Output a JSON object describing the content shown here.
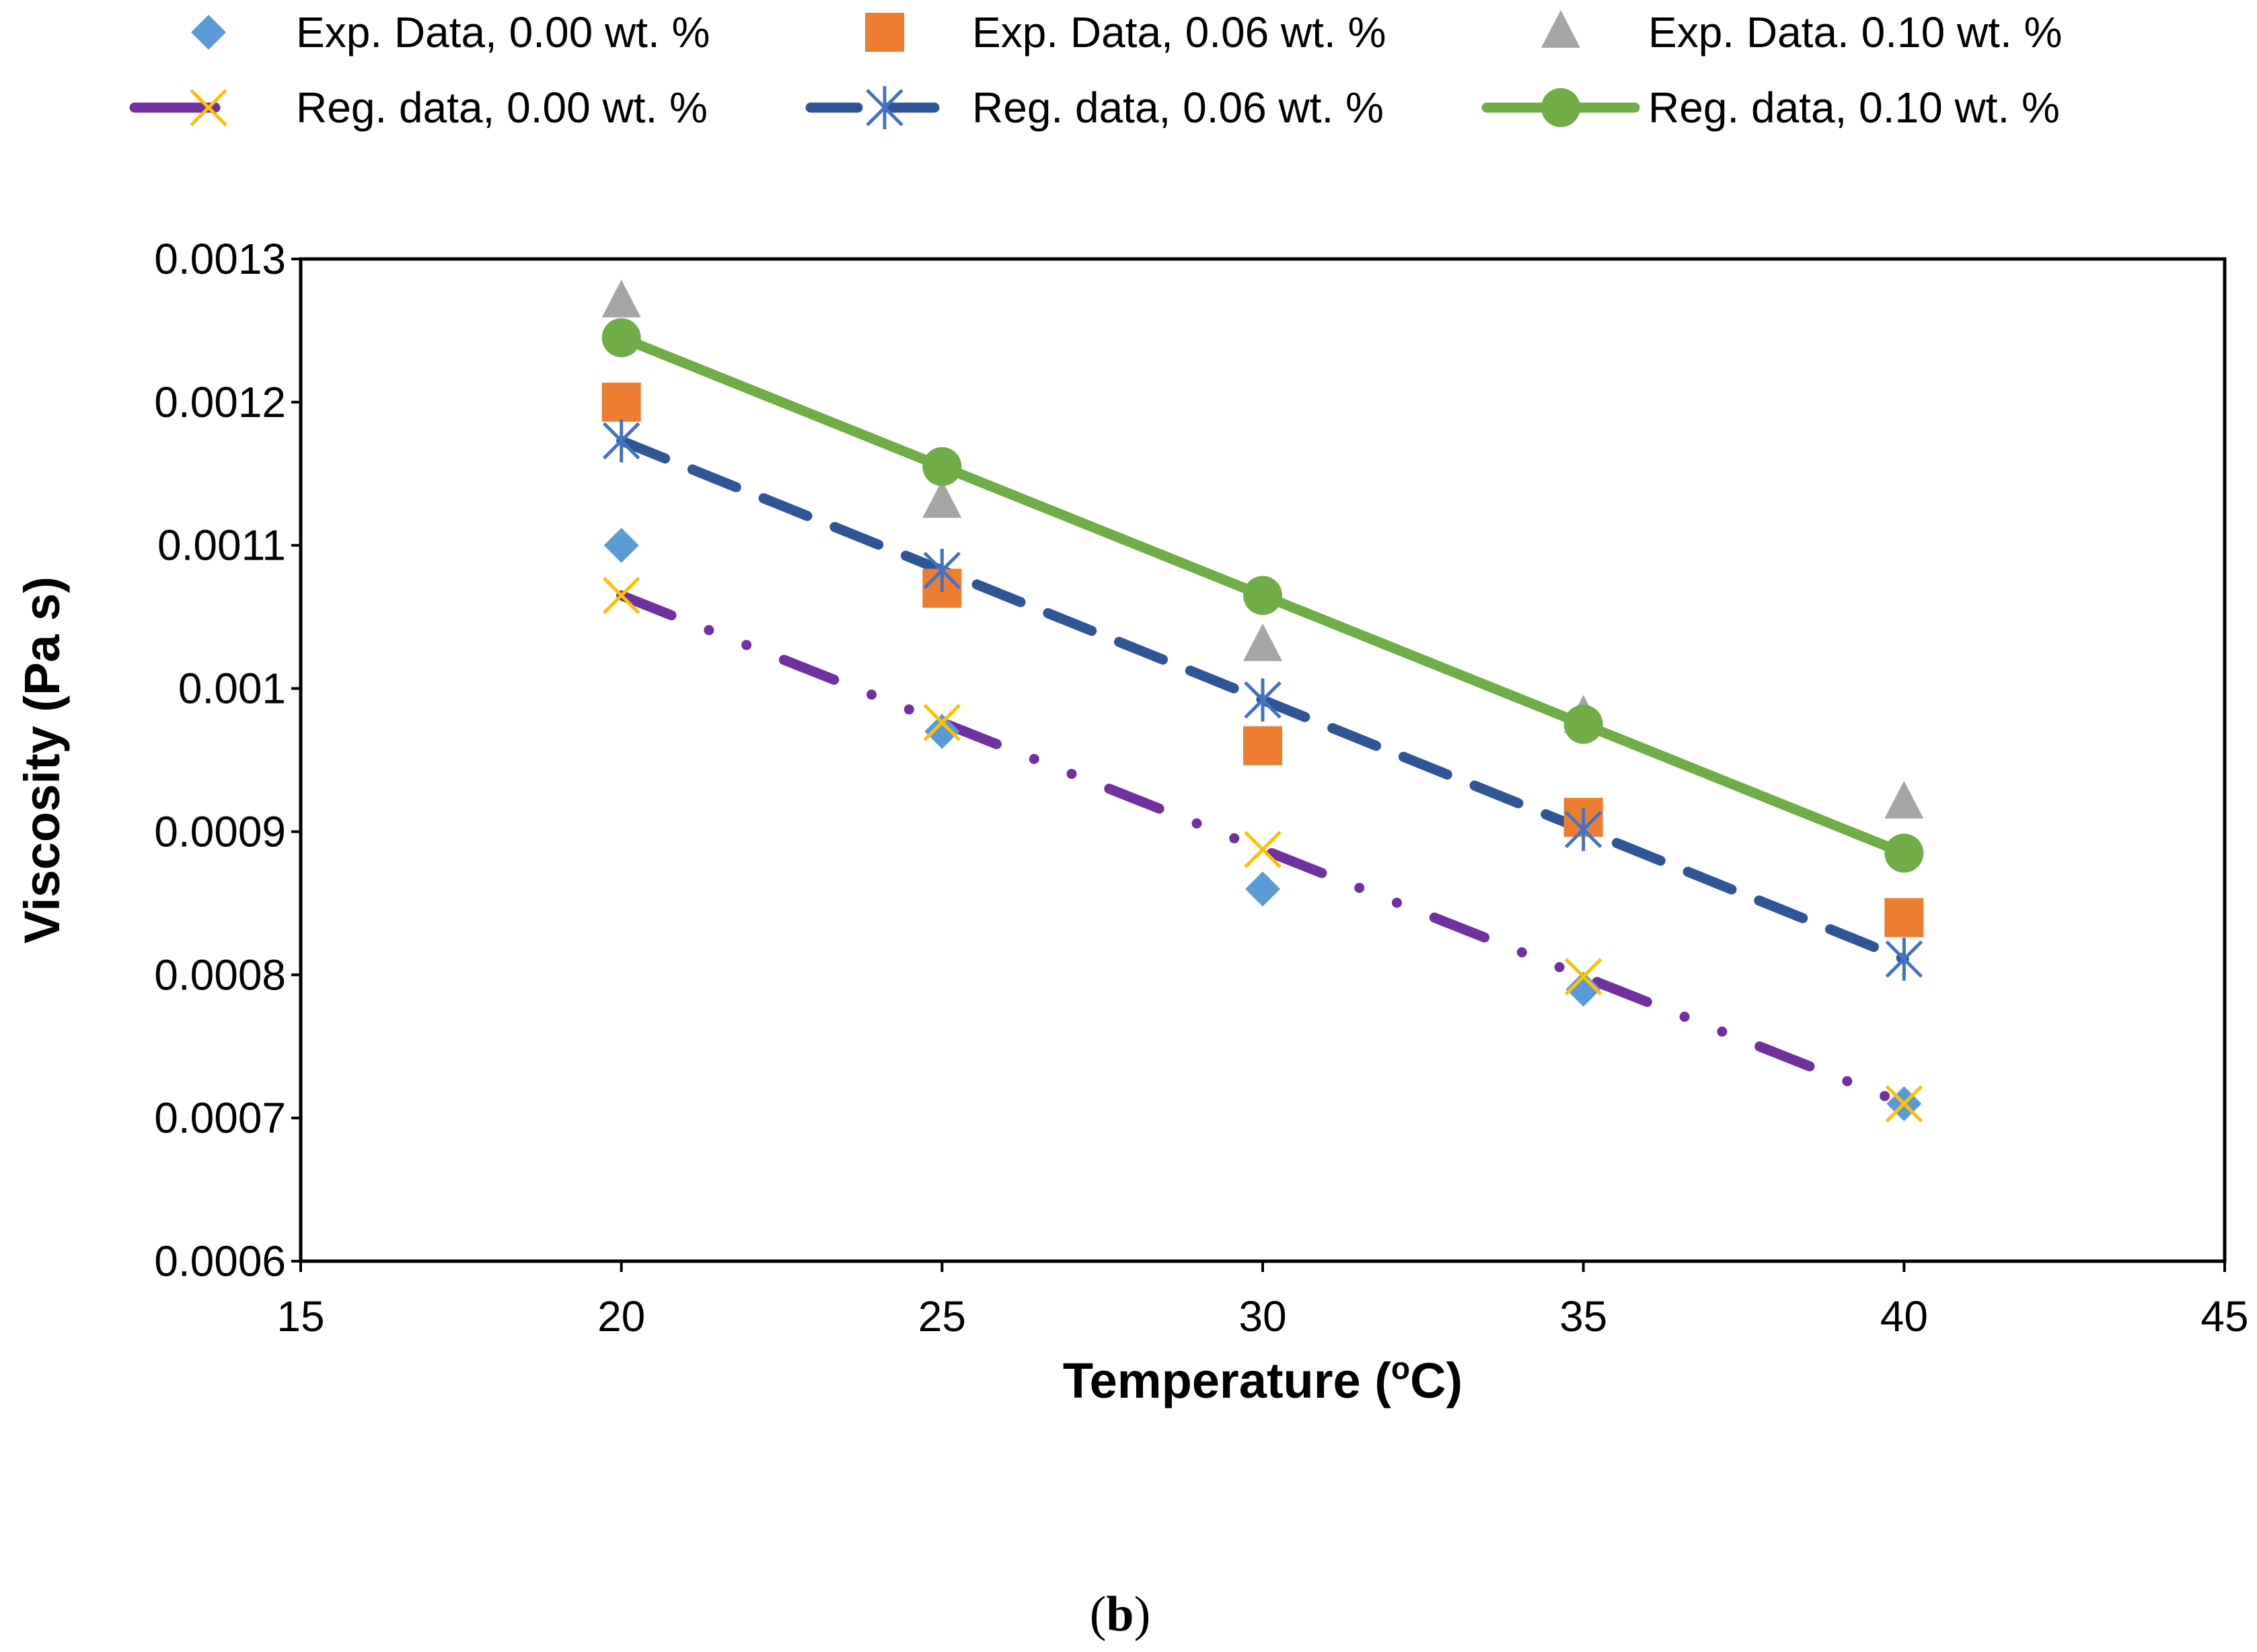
{
  "chart_data": {
    "type": "scatter",
    "title": "",
    "xlabel": "Temperature (",
    "xlabel_sup": "o",
    "xlabel_tail": "C)",
    "ylabel": "Viscosity (Pa s)",
    "caption_open": "(",
    "caption_letter": "b",
    "caption_close": ")",
    "xlim": [
      15,
      45
    ],
    "ylim": [
      0.0006,
      0.0013
    ],
    "x_ticks": [
      "15",
      "20",
      "25",
      "30",
      "35",
      "40",
      "45"
    ],
    "y_ticks": [
      "0.0006",
      "0.0007",
      "0.0008",
      "0.0009",
      "0.001",
      "0.0011",
      "0.0012",
      "0.0013"
    ],
    "x": [
      20,
      25,
      30,
      35,
      40
    ],
    "legend_position": "top",
    "series": [
      {
        "name": "Exp. Data, 0.00 wt. %",
        "kind": "experimental",
        "marker": "diamond",
        "color": "#5B9BD5",
        "values": [
          0.0011,
          0.00097,
          0.00086,
          0.00079,
          0.00071
        ]
      },
      {
        "name": "Exp. Data, 0.06 wt. %",
        "kind": "experimental",
        "marker": "square",
        "color": "#ED7D31",
        "values": [
          0.0012,
          0.00107,
          0.00096,
          0.00091,
          0.00084
        ]
      },
      {
        "name": "Exp. Data. 0.10 wt. %",
        "kind": "experimental",
        "marker": "triangle",
        "color": "#A5A5A5",
        "values": [
          0.00127,
          0.00113,
          0.00103,
          0.00098,
          0.00092
        ]
      },
      {
        "name": "Reg. data, 0.00 wt. %",
        "kind": "regression",
        "marker": "x",
        "marker_color": "#FFC000",
        "color": "#7030A0",
        "line_style": "dash-dot-dot",
        "values": [
          0.001065,
          0.00097625,
          0.0008875,
          0.00079875,
          0.00071
        ]
      },
      {
        "name": "Reg. data, 0.06 wt. %",
        "kind": "regression",
        "marker": "star",
        "marker_color": "#4472C4",
        "color": "#2F5597",
        "line_style": "dash",
        "values": [
          0.001173,
          0.0010825,
          0.000992,
          0.0009015,
          0.000811
        ]
      },
      {
        "name": "Reg. data, 0.10 wt. %",
        "kind": "regression",
        "marker": "circle",
        "marker_color": "#70AD47",
        "color": "#70AD47",
        "line_style": "solid",
        "values": [
          0.001245,
          0.001155,
          0.001065,
          0.000975,
          0.000885
        ]
      }
    ]
  }
}
